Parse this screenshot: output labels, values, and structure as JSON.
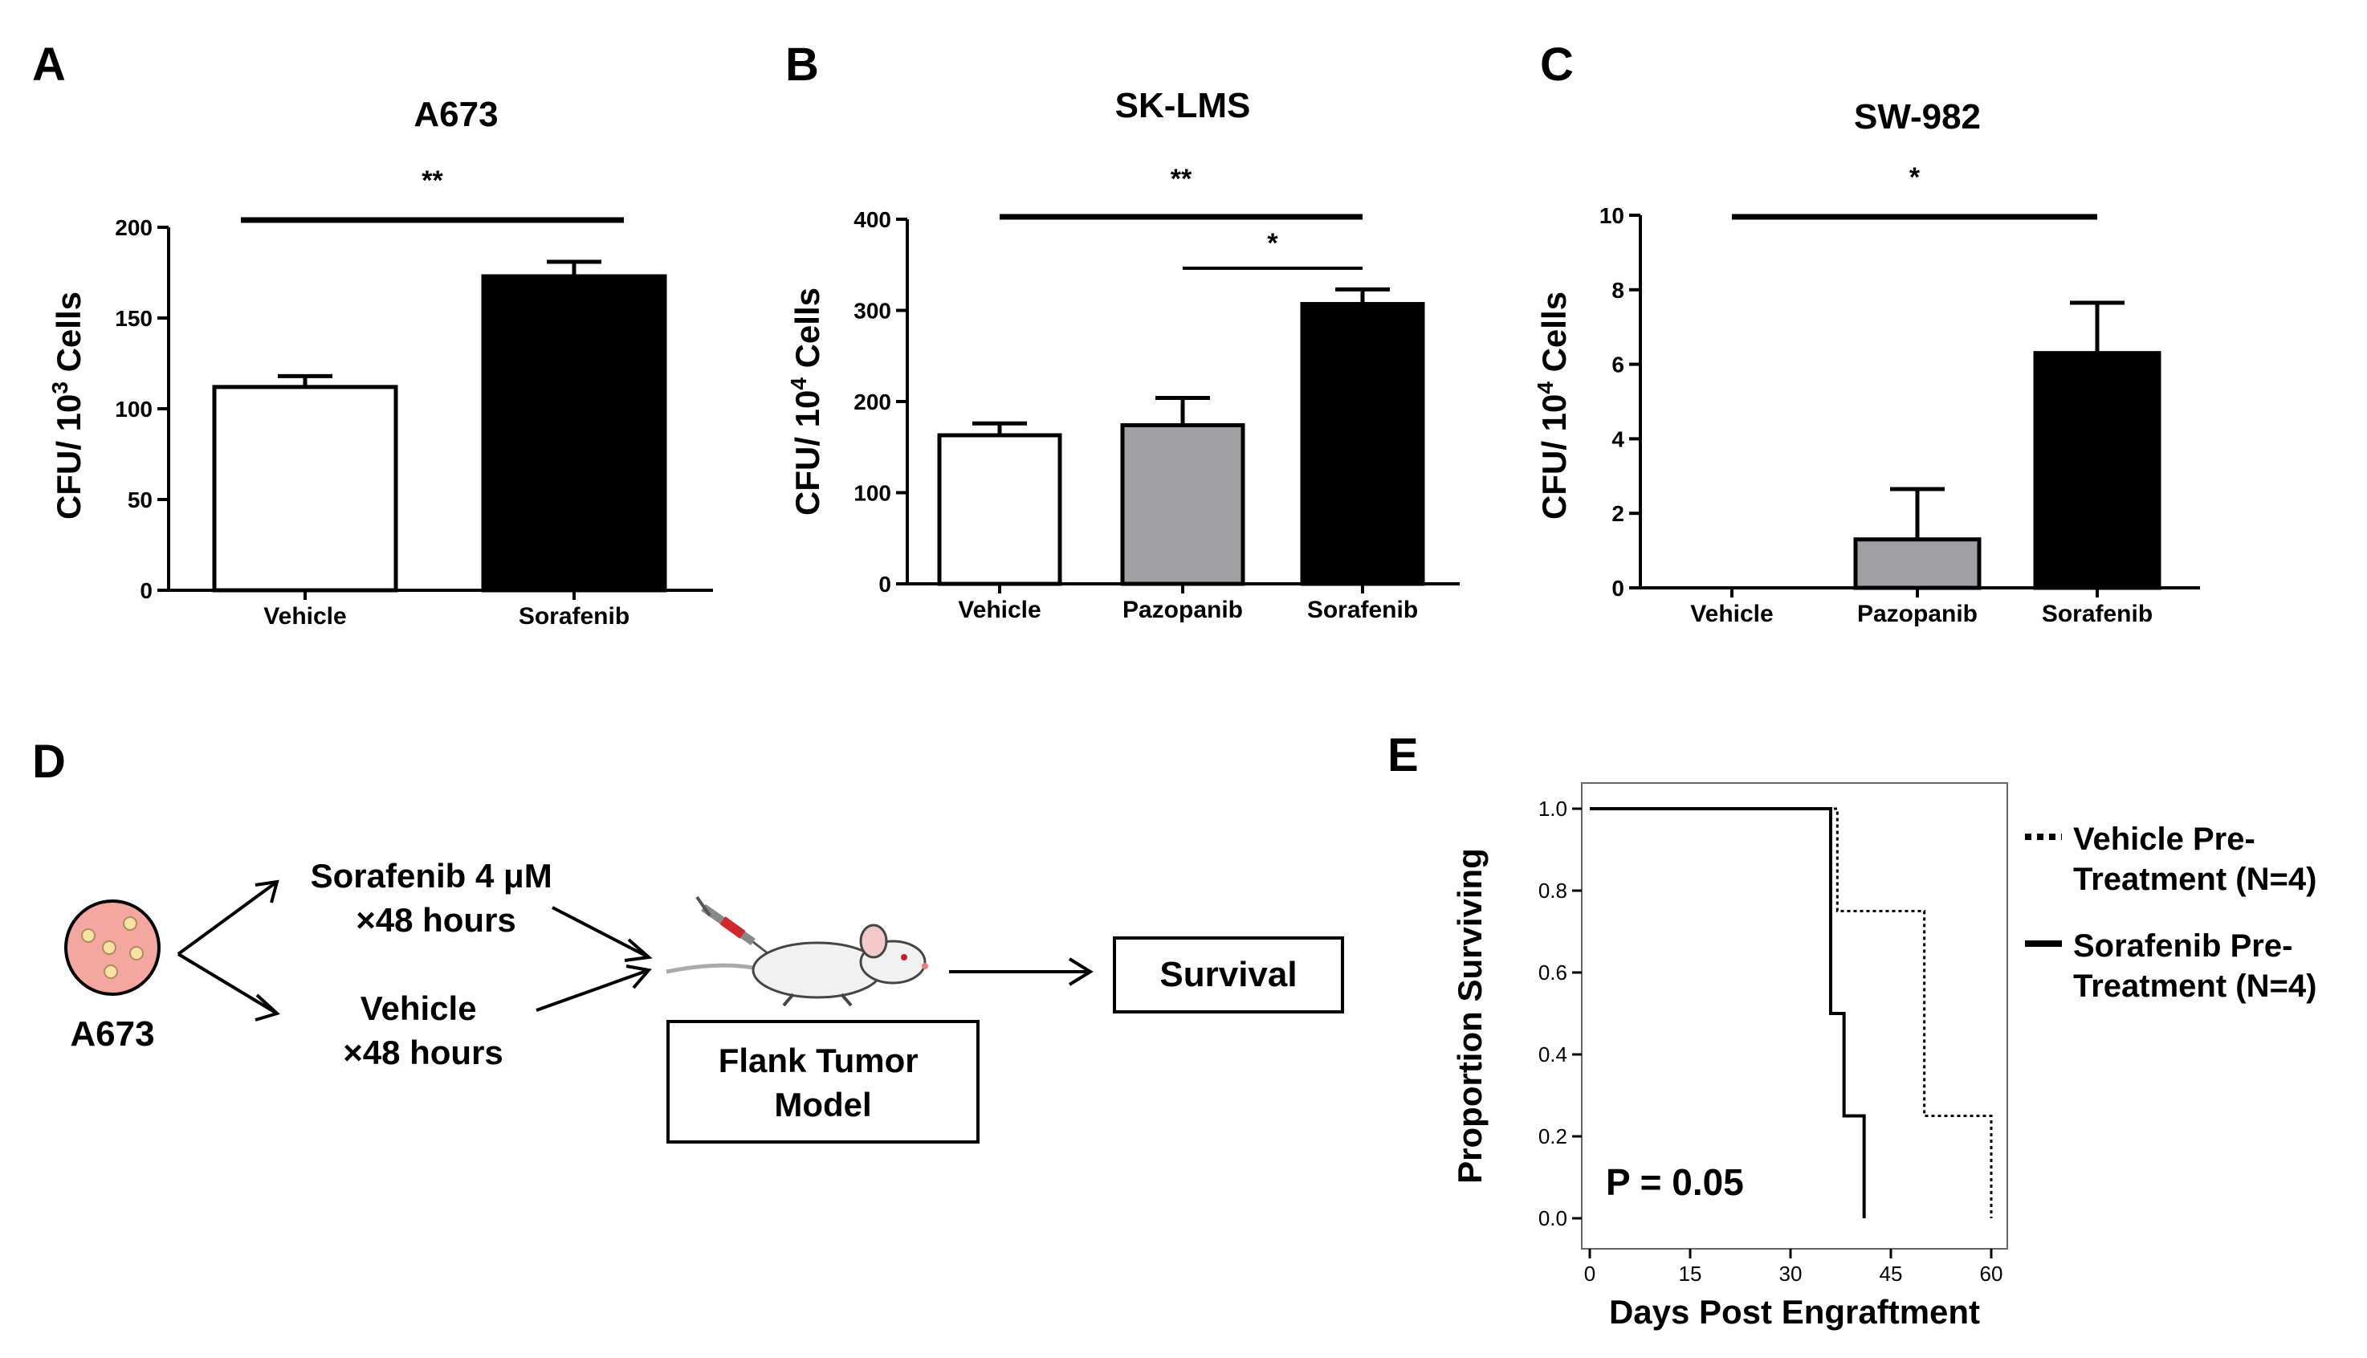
{
  "colors": {
    "ink": "#000000",
    "vehicle_fill": "#ffffff",
    "pazopanib_fill": "#a0a0a3",
    "sorafenib_fill": "#000000",
    "dish_fill": "#f4a6a0",
    "dish_dots": "#f6e3a4",
    "syringe": "#d0282d"
  },
  "panel_letters": [
    "A",
    "B",
    "C",
    "D",
    "E"
  ],
  "chart_data": [
    {
      "panel": "A",
      "type": "bar",
      "title": "A673",
      "ylabel": {
        "pre": "CFU/ 10",
        "sup": "3",
        "post": " Cells"
      },
      "xlabel": "",
      "categories": [
        "Vehicle",
        "Sorafenib"
      ],
      "values": [
        112,
        173
      ],
      "errors": [
        6,
        8
      ],
      "bar_fills": [
        "#ffffff",
        "#000000"
      ],
      "ylim": [
        0,
        200
      ],
      "yticks": [
        0,
        50,
        100,
        150,
        200
      ],
      "significance": [
        {
          "from": 0,
          "to": 1,
          "label": "**"
        }
      ]
    },
    {
      "panel": "B",
      "type": "bar",
      "title": "SK-LMS",
      "ylabel": {
        "pre": "CFU/ 10",
        "sup": "4",
        "post": " Cells"
      },
      "xlabel": "",
      "categories": [
        "Vehicle",
        "Pazopanib",
        "Sorafenib"
      ],
      "values": [
        163,
        174,
        307
      ],
      "errors": [
        13,
        30,
        16
      ],
      "bar_fills": [
        "#ffffff",
        "#a0a0a3",
        "#000000"
      ],
      "ylim": [
        0,
        400
      ],
      "yticks": [
        0,
        100,
        200,
        300,
        400
      ],
      "significance": [
        {
          "from": 0,
          "to": 2,
          "label": "**"
        },
        {
          "from": 1,
          "to": 2,
          "label": "*"
        }
      ]
    },
    {
      "panel": "C",
      "type": "bar",
      "title": "SW-982",
      "ylabel": {
        "pre": "CFU/ 10",
        "sup": "4",
        "post": " Cells"
      },
      "xlabel": "",
      "categories": [
        "Vehicle",
        "Pazopanib",
        "Sorafenib"
      ],
      "values": [
        0,
        1.3,
        6.3
      ],
      "errors": [
        0,
        1.35,
        1.35
      ],
      "bar_fills": [
        "#ffffff",
        "#a0a0a3",
        "#000000"
      ],
      "ylim": [
        0,
        10
      ],
      "yticks": [
        0,
        2,
        4,
        6,
        8,
        10
      ],
      "significance": [
        {
          "from": 0,
          "to": 2,
          "label": "*"
        }
      ]
    },
    {
      "panel": "E",
      "type": "line",
      "subtype": "kaplan-meier survival",
      "xlabel": "Days Post Engraftment",
      "ylabel": "Proportion Surviving",
      "xlim": [
        0,
        60
      ],
      "ylim": [
        0,
        1
      ],
      "xticks": [
        0,
        15,
        30,
        45,
        60
      ],
      "yticks": [
        "0.0",
        "0.2",
        "0.4",
        "0.6",
        "0.8",
        "1.0"
      ],
      "annotation": "P = 0.05",
      "legend_position": "right",
      "series": [
        {
          "name": "Vehicle Pre-Treatment (N=4)",
          "legend_lines": [
            "Vehicle Pre-",
            "Treatment (N=4)"
          ],
          "style": "dotted",
          "x": [
            0,
            37,
            37,
            50,
            50,
            60,
            60
          ],
          "y": [
            1.0,
            1.0,
            0.75,
            0.75,
            0.25,
            0.25,
            0.0
          ]
        },
        {
          "name": "Sorafenib Pre-Treatment (N=4)",
          "legend_lines": [
            "Sorafenib Pre-",
            "Treatment (N=4)"
          ],
          "style": "solid",
          "x": [
            0,
            36,
            36,
            38,
            38,
            41,
            41
          ],
          "y": [
            1.0,
            1.0,
            0.5,
            0.5,
            0.25,
            0.25,
            0.0
          ]
        }
      ]
    }
  ],
  "schematic": {
    "cell_line": "A673",
    "sorafenib_lines": [
      "Sorafenib 4 μM",
      "×48 hours"
    ],
    "vehicle_lines": [
      "Vehicle",
      "×48 hours"
    ],
    "model_lines": [
      "Flank Tumor",
      "Model"
    ],
    "outcome": "Survival"
  }
}
